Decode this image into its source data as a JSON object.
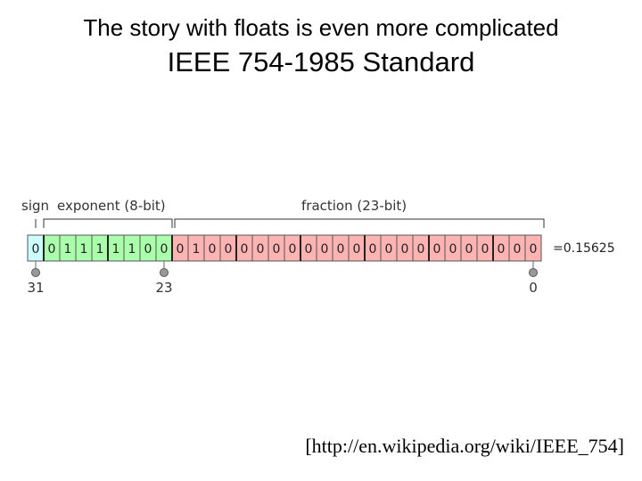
{
  "slide": {
    "title": "The story with floats is even more complicated",
    "subtitle": "IEEE 754-1985 Standard",
    "citation": "[http://en.wikipedia.org/wiki/IEEE_754]"
  },
  "diagram": {
    "labels": {
      "sign": "sign",
      "exponent": "exponent (8-bit)",
      "fraction": "fraction (23-bit)"
    },
    "bits": [
      "0",
      "0",
      "1",
      "1",
      "1",
      "1",
      "1",
      "0",
      "0",
      "0",
      "1",
      "0",
      "0",
      "0",
      "0",
      "0",
      "0",
      "0",
      "0",
      "0",
      "0",
      "0",
      "0",
      "0",
      "0",
      "0",
      "0",
      "0",
      "0",
      "0",
      "0",
      "0"
    ],
    "value": "=0.15625",
    "positions": [
      {
        "label": "31",
        "bit_index": 0
      },
      {
        "label": "23",
        "bit_index": 8
      },
      {
        "label": "0",
        "bit_index": 31
      }
    ],
    "colors": {
      "sign": "#ccffff",
      "exponent": "#aaffaa",
      "fraction": "#ffb3b3",
      "marker": "#999999"
    }
  }
}
